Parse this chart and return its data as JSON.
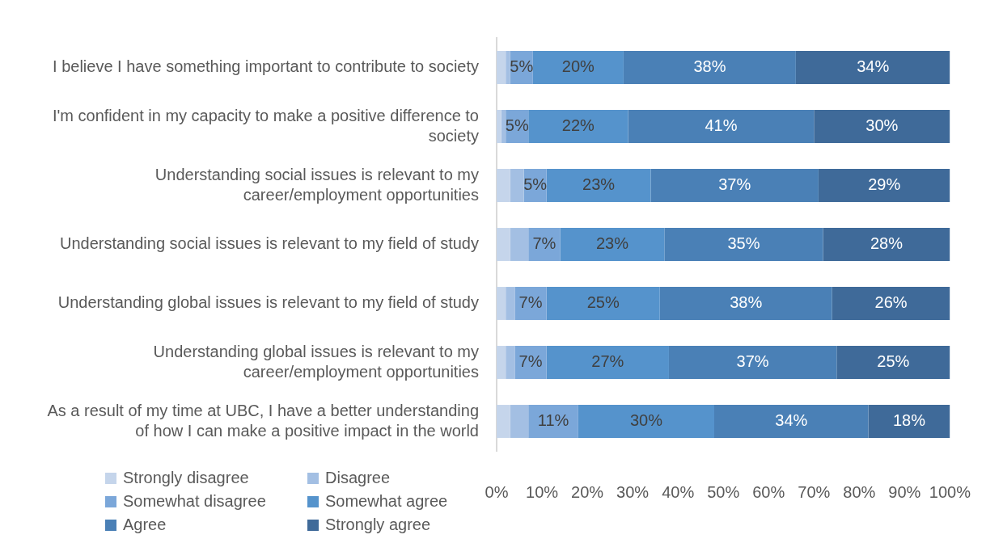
{
  "chart_data": {
    "type": "bar",
    "orientation": "horizontal",
    "stacked": true,
    "categories": [
      "I believe I have something important to contribute to society",
      "I'm confident in my capacity to make a positive difference to society",
      "Understanding social issues is relevant to my career/employment opportunities",
      "Understanding social issues is relevant to my field of study",
      "Understanding global issues is relevant to my field of study",
      "Understanding global issues is relevant to my career/employment opportunities",
      "As a result of my time at UBC, I have a better understanding of how I can make a positive impact in the world"
    ],
    "series": [
      {
        "name": "Strongly disagree",
        "color": "#c5d5eb",
        "values": [
          2,
          1,
          3,
          3,
          2,
          2,
          3
        ]
      },
      {
        "name": "Disagree",
        "color": "#a3bfe3",
        "values": [
          1,
          1,
          3,
          4,
          2,
          2,
          4
        ]
      },
      {
        "name": "Somewhat disagree",
        "color": "#7ba7d9",
        "values": [
          5,
          5,
          5,
          7,
          7,
          7,
          11
        ],
        "value_labels": [
          "5%",
          "5%",
          "5%",
          "7%",
          "7%",
          "7%",
          "11%"
        ]
      },
      {
        "name": "Somewhat agree",
        "color": "#5593cc",
        "values": [
          20,
          22,
          23,
          23,
          25,
          27,
          30
        ],
        "value_labels": [
          "20%",
          "22%",
          "23%",
          "23%",
          "25%",
          "27%",
          "30%"
        ]
      },
      {
        "name": "Agree",
        "color": "#4a80b6",
        "values": [
          38,
          41,
          37,
          35,
          38,
          37,
          34
        ],
        "value_labels": [
          "38%",
          "41%",
          "37%",
          "35%",
          "38%",
          "37%",
          "34%"
        ]
      },
      {
        "name": "Strongly agree",
        "color": "#3f6a99",
        "values": [
          34,
          30,
          29,
          28,
          26,
          25,
          18
        ],
        "value_labels": [
          "34%",
          "30%",
          "29%",
          "28%",
          "26%",
          "25%",
          "18%"
        ]
      }
    ],
    "xlim": [
      0,
      100
    ],
    "xticks": [
      {
        "value": 0,
        "label": "0%"
      },
      {
        "value": 10,
        "label": "10%"
      },
      {
        "value": 20,
        "label": "20%"
      },
      {
        "value": 30,
        "label": "30%"
      },
      {
        "value": 40,
        "label": "40%"
      },
      {
        "value": 50,
        "label": "50%"
      },
      {
        "value": 60,
        "label": "60%"
      },
      {
        "value": 70,
        "label": "70%"
      },
      {
        "value": 80,
        "label": "80%"
      },
      {
        "value": 90,
        "label": "90%"
      },
      {
        "value": 100,
        "label": "100%"
      }
    ],
    "grid": false,
    "legend": "bottom left"
  }
}
